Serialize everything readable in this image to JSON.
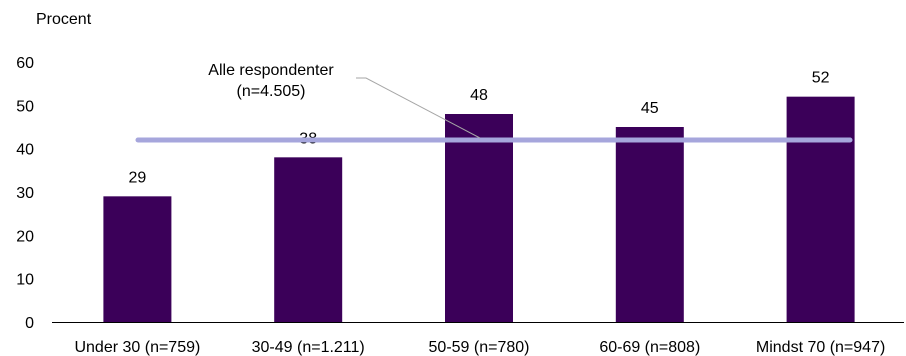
{
  "chart_data": {
    "type": "bar",
    "ylabel": "Procent",
    "ylim": [
      0,
      60
    ],
    "yticks": [
      0,
      10,
      20,
      30,
      40,
      50,
      60
    ],
    "grid": false,
    "categories": [
      "Under 30 (n=759)",
      "30-49 (n=1.211)",
      "50-59 (n=780)",
      "60-69 (n=808)",
      "Mindst 70 (n=947)"
    ],
    "values": [
      29,
      38,
      48,
      45,
      52
    ],
    "data_labels": [
      "29",
      "38",
      "48",
      "45",
      "52"
    ],
    "bar_color": "#3b0059",
    "reference_line": {
      "value": 42,
      "color": "#a6a6dc",
      "label_line1": "Alle respondenter",
      "label_line2": "(n=4.505)"
    }
  }
}
